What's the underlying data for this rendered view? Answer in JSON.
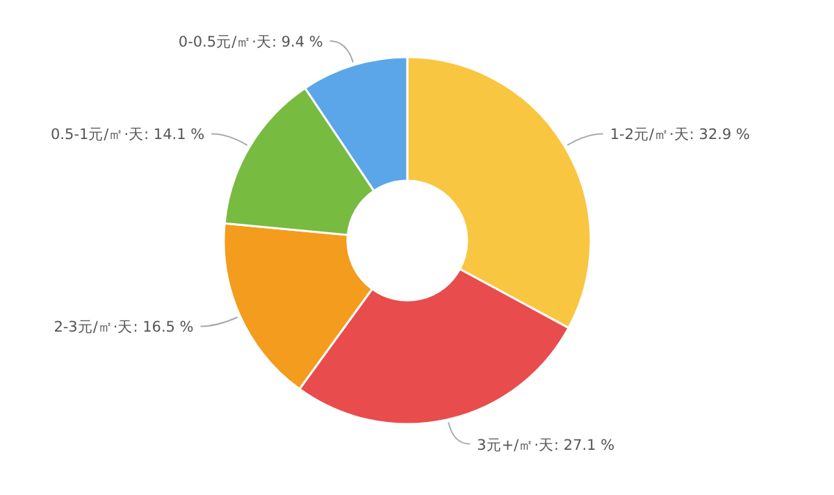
{
  "chart_data": {
    "type": "donut",
    "categories": [
      "1-2元/㎡·天",
      "3元+/㎡·天",
      "2-3元/㎡·天",
      "0.5-1元/㎡·天",
      "0-0.5元/㎡·天"
    ],
    "values": [
      32.9,
      27.1,
      16.5,
      14.1,
      9.4
    ],
    "value_labels": [
      "32.9 %",
      "27.1 %",
      "16.5 %",
      "14.1 %",
      "9.4 %"
    ],
    "colors": [
      "#f9c642",
      "#e84c4c",
      "#f39c1e",
      "#77bb41",
      "#5aa6e8"
    ],
    "legend": false
  }
}
